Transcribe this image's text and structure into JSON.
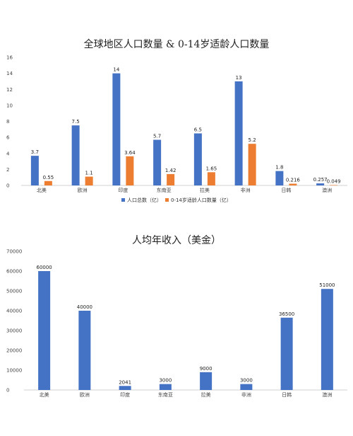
{
  "chart_data": [
    {
      "type": "bar",
      "title": "全球地区人口数量 & 0-14岁适龄人口数量",
      "categories": [
        "北美",
        "欧洲",
        "印度",
        "东南亚",
        "拉美",
        "非洲",
        "日韩",
        "澳洲"
      ],
      "series": [
        {
          "name": "人口总数（亿）",
          "color": "#4472C4",
          "values": [
            3.7,
            7.5,
            14,
            5.7,
            6.5,
            13,
            1.8,
            0.257
          ],
          "labels": [
            "3.7",
            "7.5",
            "14",
            "5.7",
            "6.5",
            "13",
            "1.8",
            "0.257"
          ]
        },
        {
          "name": "0-14岁适龄人口数量（亿）",
          "color": "#ED7D31",
          "values": [
            0.55,
            1.1,
            3.64,
            1.42,
            1.65,
            5.2,
            0.216,
            0.049
          ],
          "labels": [
            "0.55",
            "1.1",
            "3.64",
            "1.42",
            "1.65",
            "5.2",
            "0.216",
            "0.049"
          ]
        }
      ],
      "ylim": [
        0,
        16
      ],
      "yticks": [
        "0",
        "2",
        "4",
        "6",
        "8",
        "10",
        "12",
        "14",
        "16"
      ],
      "grid": false,
      "legend": "bottom"
    },
    {
      "type": "bar",
      "title": "人均年收入（美金）",
      "categories": [
        "北美",
        "欧洲",
        "印度",
        "东南亚",
        "拉美",
        "非洲",
        "日韩",
        "澳洲"
      ],
      "series": [
        {
          "color": "#4472C4",
          "values": [
            60000,
            40000,
            2041,
            3000,
            9000,
            3000,
            36500,
            51000
          ],
          "labels": [
            "60000",
            "40000",
            "2041",
            "3000",
            "9000",
            "3000",
            "36500",
            "51000"
          ]
        }
      ],
      "ylim": [
        0,
        70000
      ],
      "yticks": [
        "0",
        "10000",
        "20000",
        "30000",
        "40000",
        "50000",
        "60000",
        "70000"
      ],
      "grid": false,
      "legend": "none"
    }
  ]
}
